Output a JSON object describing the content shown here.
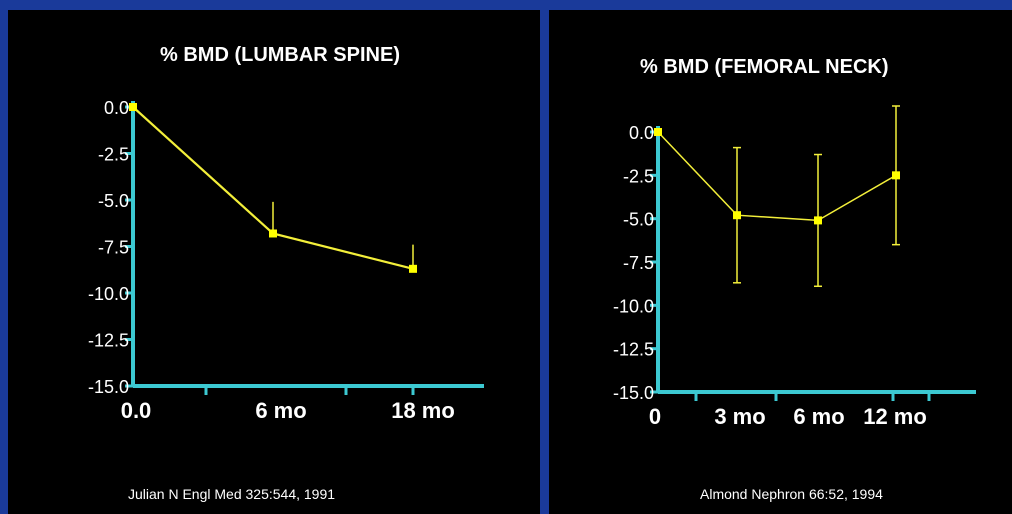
{
  "colors": {
    "background": "#1a3a9a",
    "panel": "#000000",
    "axis": "#3cc9d2",
    "line": "#f3ef3a",
    "point": "#ffff00",
    "text": "#ffffff"
  },
  "chart_data": [
    {
      "type": "line",
      "title": "% BMD (LUMBAR SPINE)",
      "citation": "Julian N Engl Med 325:544, 1991",
      "xlabel": "",
      "ylabel": "",
      "x_ticks": [
        "0.0",
        "6 mo",
        "18 mo"
      ],
      "y_ticks": [
        "0.0",
        "-2.5",
        "-5.0",
        "-7.5",
        "-10.0",
        "-12.5",
        "-15.0"
      ],
      "ylim": [
        -15,
        0
      ],
      "grid": false,
      "series": [
        {
          "x": [
            "0.0",
            "6 mo",
            "18 mo"
          ],
          "values": [
            0.0,
            -6.8,
            -8.7
          ],
          "error_bars": [
            0.0,
            1.7,
            1.3
          ]
        }
      ]
    },
    {
      "type": "line",
      "title": "% BMD (FEMORAL NECK)",
      "citation": "Almond Nephron 66:52, 1994",
      "xlabel": "",
      "ylabel": "",
      "x_ticks": [
        "0",
        "3 mo",
        "6 mo",
        "12 mo"
      ],
      "y_ticks": [
        "0.0",
        "-2.5",
        "-5.0",
        "-7.5",
        "-10.0",
        "-12.5",
        "-15.0"
      ],
      "ylim": [
        -15,
        0
      ],
      "grid": false,
      "series": [
        {
          "x": [
            "0",
            "3 mo",
            "6 mo",
            "12 mo"
          ],
          "values": [
            0.0,
            -4.8,
            -5.1,
            -2.5
          ],
          "error_bars": [
            0.0,
            3.9,
            3.8,
            4.0
          ]
        }
      ]
    }
  ]
}
